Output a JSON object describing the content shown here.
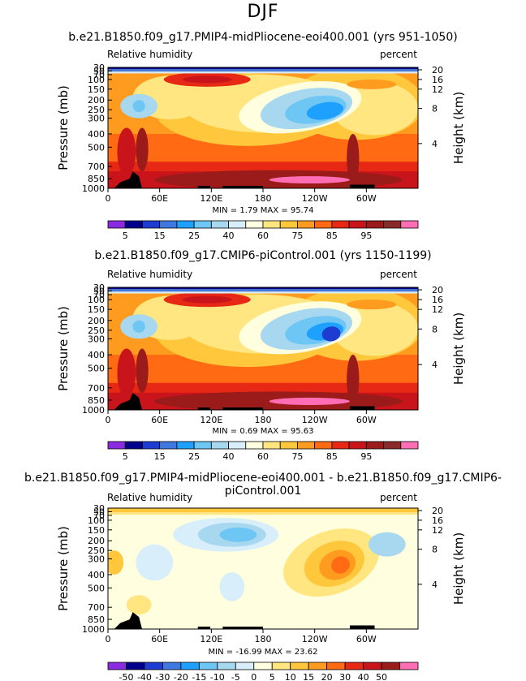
{
  "figure": {
    "title": "DJF"
  },
  "colors": {
    "rh_levels": [
      "#8a2be2",
      "#00008b",
      "#1e3cd2",
      "#3f78e0",
      "#1ea0ff",
      "#6ec6f5",
      "#a8d8f0",
      "#d8eefa",
      "#ffffe0",
      "#ffe680",
      "#ffc83c",
      "#ff9c20",
      "#ff6a12",
      "#e62814",
      "#c8141a",
      "#9b1b1b",
      "#8b2a2a",
      "#ff6eb4"
    ],
    "diff_levels": [
      "#8a2be2",
      "#00008b",
      "#1e3cd2",
      "#3f78e0",
      "#1ea0ff",
      "#6ec6f5",
      "#a8d8f0",
      "#d8eefa",
      "#ffffe0",
      "#ffe680",
      "#ffc83c",
      "#ff9c20",
      "#ff6a12",
      "#e62814",
      "#c8141a",
      "#9b1b1b",
      "#ff6eb4"
    ]
  },
  "chart_data": [
    {
      "type": "heatmap",
      "title": "b.e21.B1850.f09_g17.PMIP4-midPliocene-eoi400.001 (yrs 951-1050)",
      "left_label": "Relative humidity",
      "right_label": "percent",
      "ylabel": "Pressure  (mb)",
      "y2label": "Height  (km)",
      "xticks": [
        "0",
        "60E",
        "120E",
        "180",
        "120W",
        "60W"
      ],
      "yticks": [
        "30",
        "50",
        "70",
        "100",
        "150",
        "200",
        "250",
        "300",
        "400",
        "500",
        "700",
        "850",
        "1000"
      ],
      "y2ticks": [
        "20",
        "16",
        "12",
        "8",
        "4"
      ],
      "stats": "MIN =    1.79   MAX =   95.74",
      "colorbar_labels": [
        "5",
        "15",
        "25",
        "40",
        "60",
        "75",
        "85",
        "95"
      ]
    },
    {
      "type": "heatmap",
      "title": "b.e21.B1850.f09_g17.CMIP6-piControl.001 (yrs 1150-1199)",
      "left_label": "Relative humidity",
      "right_label": "percent",
      "ylabel": "Pressure  (mb)",
      "y2label": "Height  (km)",
      "xticks": [
        "0",
        "60E",
        "120E",
        "180",
        "120W",
        "60W"
      ],
      "yticks": [
        "30",
        "50",
        "70",
        "100",
        "150",
        "200",
        "250",
        "300",
        "400",
        "500",
        "700",
        "850",
        "1000"
      ],
      "y2ticks": [
        "20",
        "16",
        "12",
        "8",
        "4"
      ],
      "stats": "MIN =    0.69   MAX =   95.63",
      "colorbar_labels": [
        "5",
        "15",
        "25",
        "40",
        "60",
        "75",
        "85",
        "95"
      ]
    },
    {
      "type": "heatmap",
      "title": "b.e21.B1850.f09_g17.PMIP4-midPliocene-eoi400.001 - b.e21.B1850.f09_g17.CMIP6-piControl.001",
      "left_label": "Relative humidity",
      "right_label": "percent",
      "ylabel": "Pressure  (mb)",
      "y2label": "Height  (km)",
      "xticks": [
        "0",
        "60E",
        "120E",
        "180",
        "120W",
        "60W"
      ],
      "yticks": [
        "30",
        "50",
        "70",
        "100",
        "150",
        "200",
        "250",
        "300",
        "400",
        "500",
        "700",
        "850",
        "1000"
      ],
      "y2ticks": [
        "20",
        "16",
        "12",
        "8",
        "4"
      ],
      "stats": "MIN =  -16.99   MAX =   23.62",
      "colorbar_labels": [
        "-50",
        "-40",
        "-30",
        "-20",
        "-15",
        "-10",
        "-5",
        "0",
        "5",
        "10",
        "15",
        "20",
        "30",
        "40",
        "50"
      ]
    }
  ]
}
